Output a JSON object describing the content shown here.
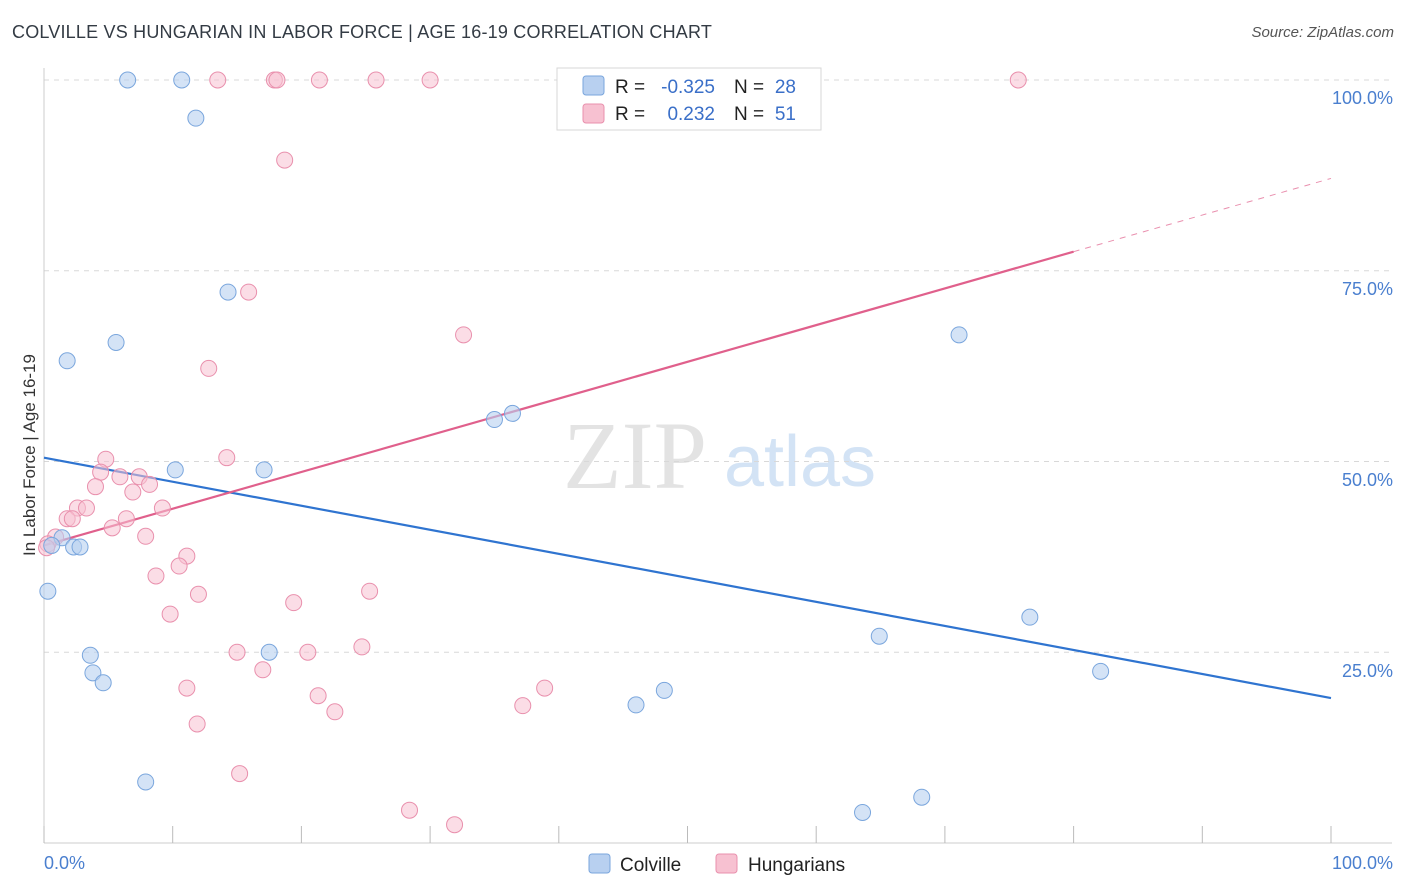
{
  "title": "COLVILLE VS HUNGARIAN IN LABOR FORCE | AGE 16-19 CORRELATION CHART",
  "source": "Source: ZipAtlas.com",
  "watermark": {
    "zip": "ZIP",
    "atlas": "atlas"
  },
  "colors": {
    "colville_fill": "#b8d0f0",
    "colville_stroke": "#7aa6dd",
    "colville_line": "#2f74d0",
    "hungarian_fill": "#f7c1d1",
    "hungarian_stroke": "#e990ad",
    "hungarian_line": "#e0608c",
    "grid": "#d8d8d8",
    "axis_text": "#4a7fcf"
  },
  "legend": {
    "r_label": "R =",
    "n_label": "N =",
    "colville": {
      "r": "-0.325",
      "n": "28"
    },
    "hungarians": {
      "r": "0.232",
      "n": "51"
    }
  },
  "chart_data": {
    "type": "scatter",
    "title": "COLVILLE VS HUNGARIAN IN LABOR FORCE | AGE 16-19 CORRELATION CHART",
    "xlabel": "",
    "ylabel": "In Labor Force | Age 16-19",
    "xlim": [
      0,
      100
    ],
    "ylim": [
      0,
      100
    ],
    "x_tick_labels": [
      "0.0%",
      "100.0%"
    ],
    "y_tick_labels": [
      "100.0%",
      "75.0%",
      "50.0%",
      "25.0%"
    ],
    "y_tick_values": [
      100,
      75,
      50,
      25
    ],
    "grid": true,
    "series": [
      {
        "name": "Colville",
        "r": -0.325,
        "n": 28,
        "trend": {
          "x0": 0,
          "y0": 50.5,
          "x1": 100,
          "y1": 19.0
        },
        "points": [
          [
            6.5,
            100
          ],
          [
            10.7,
            100
          ],
          [
            11.8,
            95
          ],
          [
            14.3,
            72.2
          ],
          [
            5.6,
            65.6
          ],
          [
            1.8,
            63.2
          ],
          [
            10.2,
            48.9
          ],
          [
            17.1,
            48.9
          ],
          [
            35.0,
            55.5
          ],
          [
            36.4,
            56.3
          ],
          [
            71.1,
            66.6
          ],
          [
            0.3,
            33.0
          ],
          [
            1.4,
            40.0
          ],
          [
            0.6,
            39.0
          ],
          [
            2.3,
            38.8
          ],
          [
            2.8,
            38.8
          ],
          [
            3.6,
            24.6
          ],
          [
            3.8,
            22.3
          ],
          [
            4.6,
            21.0
          ],
          [
            17.5,
            25.0
          ],
          [
            7.9,
            8.0
          ],
          [
            64.9,
            27.1
          ],
          [
            76.6,
            29.6
          ],
          [
            82.1,
            22.5
          ],
          [
            46.0,
            18.1
          ],
          [
            48.2,
            20.0
          ],
          [
            63.6,
            4.0
          ],
          [
            68.2,
            6.0
          ]
        ]
      },
      {
        "name": "Hungarians",
        "r": 0.232,
        "n": 51,
        "trend": {
          "x0": 0,
          "y0": 39.0,
          "x1": 80,
          "y1": 77.5,
          "x_ext": 100,
          "y_ext": 87.1
        },
        "points": [
          [
            13.5,
            100
          ],
          [
            17.9,
            100
          ],
          [
            18.1,
            100
          ],
          [
            21.4,
            100
          ],
          [
            25.8,
            100
          ],
          [
            30.0,
            100
          ],
          [
            75.7,
            100
          ],
          [
            18.7,
            89.5
          ],
          [
            15.9,
            72.2
          ],
          [
            32.6,
            66.6
          ],
          [
            12.8,
            62.2
          ],
          [
            14.2,
            50.5
          ],
          [
            4.8,
            50.3
          ],
          [
            4.4,
            48.6
          ],
          [
            5.9,
            48.0
          ],
          [
            7.4,
            48.0
          ],
          [
            8.2,
            47.0
          ],
          [
            4.0,
            46.7
          ],
          [
            6.9,
            46.0
          ],
          [
            2.6,
            43.9
          ],
          [
            3.3,
            43.9
          ],
          [
            9.2,
            43.9
          ],
          [
            1.8,
            42.5
          ],
          [
            2.2,
            42.5
          ],
          [
            6.4,
            42.5
          ],
          [
            5.3,
            41.3
          ],
          [
            0.9,
            40.1
          ],
          [
            7.9,
            40.2
          ],
          [
            0.3,
            39.2
          ],
          [
            0.2,
            38.7
          ],
          [
            11.1,
            37.6
          ],
          [
            10.5,
            36.3
          ],
          [
            8.7,
            35.0
          ],
          [
            12.0,
            32.6
          ],
          [
            19.4,
            31.5
          ],
          [
            25.3,
            33.0
          ],
          [
            9.8,
            30.0
          ],
          [
            15.0,
            25.0
          ],
          [
            20.5,
            25.0
          ],
          [
            24.7,
            25.7
          ],
          [
            17.0,
            22.7
          ],
          [
            11.1,
            20.3
          ],
          [
            21.3,
            19.3
          ],
          [
            22.6,
            17.2
          ],
          [
            38.9,
            20.3
          ],
          [
            37.2,
            18.0
          ],
          [
            11.9,
            15.6
          ],
          [
            15.2,
            9.1
          ],
          [
            28.4,
            4.3
          ],
          [
            31.9,
            2.4
          ],
          [
            41.3,
            100
          ]
        ]
      }
    ]
  },
  "bottom_legend": {
    "colville": "Colville",
    "hungarians": "Hungarians"
  }
}
